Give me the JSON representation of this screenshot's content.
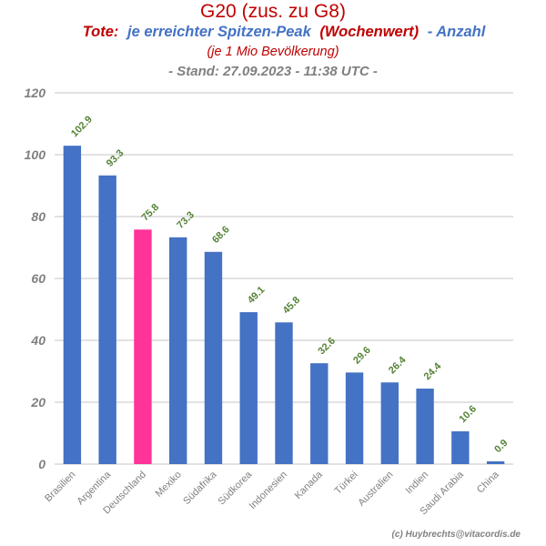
{
  "chart_data": {
    "type": "bar",
    "title": "G20 (zus. zu G8)",
    "subtitle": {
      "part1": "Tote:",
      "part2": "je erreichter Spitzen-Peak",
      "part3": "(Wochenwert)",
      "part4": "- Anzahl",
      "line2": "(je 1 Mio Bevölkerung)",
      "line3": "- Stand: 27.09.2023 - 11:38 UTC -"
    },
    "categories": [
      "Brasilien",
      "Argentina",
      "Deutschland",
      "Mexiko",
      "Südafrika",
      "Südkorea",
      "Indonesien",
      "Kanada",
      "Türkei",
      "Australien",
      "Indien",
      "Saudi Arabia",
      "China"
    ],
    "values": [
      102.9,
      93.3,
      75.8,
      73.3,
      68.6,
      49.1,
      45.8,
      32.6,
      29.6,
      26.4,
      24.4,
      10.6,
      0.9
    ],
    "data_labels": [
      "102.9",
      "93.3",
      "75.8",
      "73.3",
      "68.6",
      "49.1",
      "45.8",
      "32.6",
      "29.6",
      "26.4",
      "24.4",
      "10.6",
      "0.9"
    ],
    "ylim": [
      0,
      120
    ],
    "yticks": [
      0,
      20,
      40,
      60,
      80,
      100,
      120
    ],
    "grid": true,
    "highlight_category": "Deutschland",
    "xlabel": "",
    "ylabel": "",
    "footer": "(c) Huybrechts@vitacordis.de"
  },
  "colors": {
    "bar": "#4472c4",
    "highlight": "#ff3399",
    "title_red": "#c00000",
    "subtitle_blue": "#4472c4",
    "gray": "#808080",
    "label_green": "#548235",
    "grid": "#d9d9d9"
  }
}
